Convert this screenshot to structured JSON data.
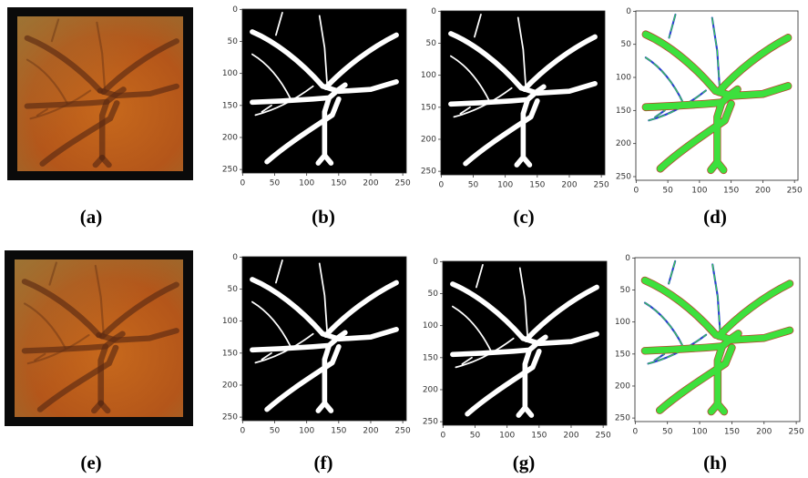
{
  "figure": {
    "panels": [
      {
        "label": "(a)"
      },
      {
        "label": "(b)",
        "xlim": [
          -0.5,
          255.5
        ],
        "ylim": [
          255.5,
          -0.5
        ],
        "xticks": [
          0,
          50,
          100,
          150,
          200,
          250
        ],
        "yticks": [
          0,
          50,
          100,
          150,
          200,
          250
        ]
      },
      {
        "label": "(c)",
        "xlim": [
          -0.5,
          255.5
        ],
        "ylim": [
          255.5,
          -0.5
        ],
        "xticks": [
          0,
          50,
          100,
          150,
          200,
          250
        ],
        "yticks": [
          0,
          50,
          100,
          150,
          200,
          250
        ]
      },
      {
        "label": "(d)",
        "xlim": [
          -0.5,
          255.5
        ],
        "ylim": [
          255.5,
          -0.5
        ],
        "xticks": [
          0,
          50,
          100,
          150,
          200,
          250
        ],
        "yticks": [
          0,
          50,
          100,
          150,
          200,
          250
        ]
      },
      {
        "label": "(e)"
      },
      {
        "label": "(f)",
        "xlim": [
          -0.5,
          255.5
        ],
        "ylim": [
          255.5,
          -0.5
        ],
        "xticks": [
          0,
          50,
          100,
          150,
          200,
          250
        ],
        "yticks": [
          0,
          50,
          100,
          150,
          200,
          250
        ]
      },
      {
        "label": "(g)",
        "xlim": [
          -0.5,
          255.5
        ],
        "ylim": [
          255.5,
          -0.5
        ],
        "xticks": [
          0,
          50,
          100,
          150,
          200,
          250
        ],
        "yticks": [
          0,
          50,
          100,
          150,
          200,
          250
        ]
      },
      {
        "label": "(h)",
        "xlim": [
          -0.5,
          255.5
        ],
        "ylim": [
          255.5,
          -0.5
        ],
        "xticks": [
          0,
          50,
          100,
          150,
          200,
          250
        ],
        "yticks": [
          0,
          50,
          100,
          150,
          200,
          250
        ]
      }
    ]
  }
}
